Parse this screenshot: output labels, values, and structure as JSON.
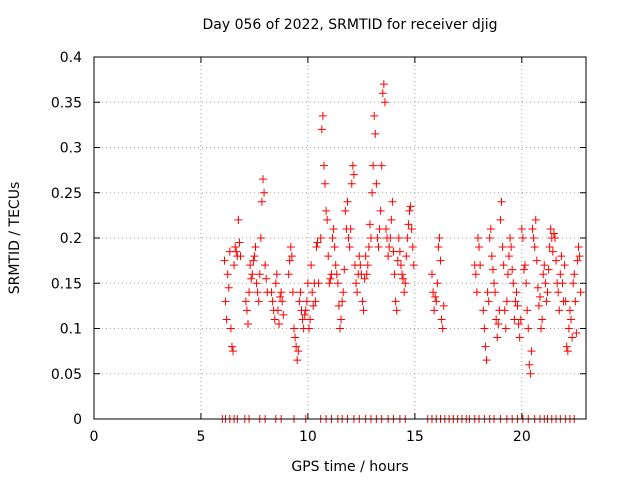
{
  "chart_data": {
    "type": "scatter",
    "title": "Day 056 of 2022, SRMTID for receiver djig",
    "xlabel": "GPS time / hours",
    "ylabel": "SRMTID / TECUs",
    "xlim": [
      0,
      23
    ],
    "ylim": [
      0,
      0.4
    ],
    "xticks": [
      0,
      5,
      10,
      15,
      20
    ],
    "yticks": [
      0,
      0.05,
      0.1,
      0.15,
      0.2,
      0.25,
      0.3,
      0.35,
      0.4
    ],
    "xtick_labels": [
      "0",
      "5",
      "10",
      "15",
      "20"
    ],
    "ytick_labels": [
      "0",
      "0.05",
      "0.1",
      "0.15",
      "0.2",
      "0.25",
      "0.3",
      "0.35",
      "0.4"
    ],
    "grid": true,
    "marker": "+",
    "series": [
      {
        "name": "SRMTID",
        "color": "#ff0000",
        "points": [
          [
            6.1,
            0.175
          ],
          [
            6.15,
            0.13
          ],
          [
            6.2,
            0.11
          ],
          [
            6.25,
            0.16
          ],
          [
            6.3,
            0.145
          ],
          [
            6.35,
            0.185
          ],
          [
            6.4,
            0.1
          ],
          [
            6.45,
            0.08
          ],
          [
            6.5,
            0.075
          ],
          [
            6.55,
            0.17
          ],
          [
            6.6,
            0.19
          ],
          [
            6.65,
            0.185
          ],
          [
            6.7,
            0.18
          ],
          [
            6.75,
            0.22
          ],
          [
            6.8,
            0.195
          ],
          [
            6.85,
            0.18
          ],
          [
            7.1,
            0.13
          ],
          [
            7.15,
            0.12
          ],
          [
            7.2,
            0.105
          ],
          [
            7.25,
            0.14
          ],
          [
            7.3,
            0.17
          ],
          [
            7.35,
            0.155
          ],
          [
            7.4,
            0.16
          ],
          [
            7.45,
            0.175
          ],
          [
            7.5,
            0.18
          ],
          [
            7.55,
            0.19
          ],
          [
            7.6,
            0.15
          ],
          [
            7.65,
            0.14
          ],
          [
            7.7,
            0.13
          ],
          [
            7.75,
            0.16
          ],
          [
            7.8,
            0.2
          ],
          [
            7.85,
            0.24
          ],
          [
            7.9,
            0.265
          ],
          [
            7.95,
            0.25
          ],
          [
            8.0,
            0.17
          ],
          [
            8.05,
            0.155
          ],
          [
            8.1,
            0.14
          ],
          [
            8.3,
            0.14
          ],
          [
            8.35,
            0.13
          ],
          [
            8.4,
            0.12
          ],
          [
            8.45,
            0.11
          ],
          [
            8.5,
            0.15
          ],
          [
            8.55,
            0.16
          ],
          [
            8.6,
            0.12
          ],
          [
            8.65,
            0.105
          ],
          [
            8.7,
            0.135
          ],
          [
            8.75,
            0.14
          ],
          [
            8.8,
            0.13
          ],
          [
            8.85,
            0.115
          ],
          [
            9.1,
            0.16
          ],
          [
            9.15,
            0.175
          ],
          [
            9.2,
            0.19
          ],
          [
            9.25,
            0.18
          ],
          [
            9.3,
            0.14
          ],
          [
            9.35,
            0.1
          ],
          [
            9.4,
            0.09
          ],
          [
            9.45,
            0.08
          ],
          [
            9.5,
            0.065
          ],
          [
            9.55,
            0.075
          ],
          [
            9.6,
            0.13
          ],
          [
            9.65,
            0.14
          ],
          [
            9.7,
            0.12
          ],
          [
            9.75,
            0.11
          ],
          [
            9.8,
            0.1
          ],
          [
            9.85,
            0.115
          ],
          [
            9.9,
            0.12
          ],
          [
            9.95,
            0.13
          ],
          [
            10.0,
            0.15
          ],
          [
            10.05,
            0.1
          ],
          [
            10.1,
            0.11
          ],
          [
            10.15,
            0.17
          ],
          [
            10.2,
            0.14
          ],
          [
            10.25,
            0.125
          ],
          [
            10.3,
            0.15
          ],
          [
            10.35,
            0.13
          ],
          [
            10.4,
            0.19
          ],
          [
            10.45,
            0.195
          ],
          [
            10.5,
            0.15
          ],
          [
            10.6,
            0.2
          ],
          [
            10.65,
            0.32
          ],
          [
            10.7,
            0.335
          ],
          [
            10.75,
            0.28
          ],
          [
            10.8,
            0.26
          ],
          [
            10.85,
            0.23
          ],
          [
            10.9,
            0.22
          ],
          [
            10.95,
            0.18
          ],
          [
            11.0,
            0.15
          ],
          [
            11.05,
            0.155
          ],
          [
            11.1,
            0.16
          ],
          [
            11.15,
            0.2
          ],
          [
            11.2,
            0.21
          ],
          [
            11.25,
            0.19
          ],
          [
            11.3,
            0.17
          ],
          [
            11.35,
            0.16
          ],
          [
            11.4,
            0.15
          ],
          [
            11.45,
            0.125
          ],
          [
            11.5,
            0.1
          ],
          [
            11.55,
            0.11
          ],
          [
            11.6,
            0.13
          ],
          [
            11.65,
            0.14
          ],
          [
            11.7,
            0.165
          ],
          [
            11.75,
            0.23
          ],
          [
            11.8,
            0.21
          ],
          [
            11.85,
            0.24
          ],
          [
            11.9,
            0.2
          ],
          [
            11.95,
            0.19
          ],
          [
            12.0,
            0.21
          ],
          [
            12.05,
            0.26
          ],
          [
            12.1,
            0.28
          ],
          [
            12.15,
            0.27
          ],
          [
            12.2,
            0.17
          ],
          [
            12.25,
            0.15
          ],
          [
            12.3,
            0.14
          ],
          [
            12.35,
            0.16
          ],
          [
            12.4,
            0.18
          ],
          [
            12.45,
            0.17
          ],
          [
            12.5,
            0.16
          ],
          [
            12.55,
            0.13
          ],
          [
            12.6,
            0.12
          ],
          [
            12.65,
            0.155
          ],
          [
            12.7,
            0.18
          ],
          [
            12.75,
            0.16
          ],
          [
            12.8,
            0.17
          ],
          [
            12.85,
            0.19
          ],
          [
            12.9,
            0.215
          ],
          [
            12.95,
            0.2
          ],
          [
            13.0,
            0.25
          ],
          [
            13.05,
            0.28
          ],
          [
            13.1,
            0.335
          ],
          [
            13.15,
            0.315
          ],
          [
            13.2,
            0.26
          ],
          [
            13.25,
            0.2
          ],
          [
            13.3,
            0.19
          ],
          [
            13.35,
            0.21
          ],
          [
            13.4,
            0.23
          ],
          [
            13.45,
            0.28
          ],
          [
            13.5,
            0.36
          ],
          [
            13.55,
            0.37
          ],
          [
            13.6,
            0.35
          ],
          [
            13.65,
            0.21
          ],
          [
            13.7,
            0.2
          ],
          [
            13.75,
            0.18
          ],
          [
            13.8,
            0.19
          ],
          [
            13.85,
            0.2
          ],
          [
            13.9,
            0.22
          ],
          [
            13.95,
            0.24
          ],
          [
            14.0,
            0.185
          ],
          [
            14.05,
            0.16
          ],
          [
            14.1,
            0.13
          ],
          [
            14.15,
            0.12
          ],
          [
            14.2,
            0.175
          ],
          [
            14.25,
            0.2
          ],
          [
            14.3,
            0.185
          ],
          [
            14.35,
            0.17
          ],
          [
            14.4,
            0.16
          ],
          [
            14.45,
            0.155
          ],
          [
            14.5,
            0.14
          ],
          [
            14.55,
            0.15
          ],
          [
            14.6,
            0.18
          ],
          [
            14.65,
            0.2
          ],
          [
            14.7,
            0.215
          ],
          [
            14.75,
            0.23
          ],
          [
            14.8,
            0.235
          ],
          [
            14.85,
            0.21
          ],
          [
            14.9,
            0.19
          ],
          [
            14.95,
            0.17
          ],
          [
            15.8,
            0.16
          ],
          [
            15.85,
            0.14
          ],
          [
            15.9,
            0.12
          ],
          [
            15.95,
            0.135
          ],
          [
            16.0,
            0.13
          ],
          [
            16.05,
            0.15
          ],
          [
            16.1,
            0.19
          ],
          [
            16.15,
            0.2
          ],
          [
            16.2,
            0.175
          ],
          [
            16.25,
            0.11
          ],
          [
            16.3,
            0.1
          ],
          [
            16.35,
            0.125
          ],
          [
            17.8,
            0.17
          ],
          [
            17.85,
            0.16
          ],
          [
            17.9,
            0.14
          ],
          [
            17.95,
            0.2
          ],
          [
            18.0,
            0.19
          ],
          [
            18.05,
            0.17
          ],
          [
            18.2,
            0.12
          ],
          [
            18.25,
            0.1
          ],
          [
            18.3,
            0.08
          ],
          [
            18.35,
            0.065
          ],
          [
            18.4,
            0.14
          ],
          [
            18.45,
            0.13
          ],
          [
            18.5,
            0.2
          ],
          [
            18.55,
            0.21
          ],
          [
            18.6,
            0.18
          ],
          [
            18.65,
            0.165
          ],
          [
            18.7,
            0.15
          ],
          [
            18.75,
            0.14
          ],
          [
            18.8,
            0.11
          ],
          [
            18.85,
            0.09
          ],
          [
            18.9,
            0.105
          ],
          [
            18.95,
            0.12
          ],
          [
            19.0,
            0.22
          ],
          [
            19.05,
            0.24
          ],
          [
            19.1,
            0.19
          ],
          [
            19.15,
            0.17
          ],
          [
            19.2,
            0.12
          ],
          [
            19.25,
            0.1
          ],
          [
            19.3,
            0.13
          ],
          [
            19.35,
            0.16
          ],
          [
            19.4,
            0.18
          ],
          [
            19.45,
            0.2
          ],
          [
            19.5,
            0.19
          ],
          [
            19.55,
            0.165
          ],
          [
            19.6,
            0.15
          ],
          [
            19.65,
            0.11
          ],
          [
            19.7,
            0.13
          ],
          [
            19.75,
            0.14
          ],
          [
            19.8,
            0.125
          ],
          [
            19.85,
            0.105
          ],
          [
            19.9,
            0.09
          ],
          [
            19.95,
            0.11
          ],
          [
            20.0,
            0.21
          ],
          [
            20.05,
            0.2
          ],
          [
            20.1,
            0.165
          ],
          [
            20.15,
            0.17
          ],
          [
            20.2,
            0.15
          ],
          [
            20.25,
            0.12
          ],
          [
            20.3,
            0.1
          ],
          [
            20.35,
            0.06
          ],
          [
            20.4,
            0.05
          ],
          [
            20.45,
            0.075
          ],
          [
            20.5,
            0.21
          ],
          [
            20.55,
            0.2
          ],
          [
            20.6,
            0.19
          ],
          [
            20.65,
            0.22
          ],
          [
            20.7,
            0.175
          ],
          [
            20.75,
            0.145
          ],
          [
            20.8,
            0.125
          ],
          [
            20.85,
            0.135
          ],
          [
            20.9,
            0.1
          ],
          [
            20.95,
            0.11
          ],
          [
            21.0,
            0.16
          ],
          [
            21.05,
            0.17
          ],
          [
            21.1,
            0.15
          ],
          [
            21.15,
            0.13
          ],
          [
            21.2,
            0.14
          ],
          [
            21.25,
            0.165
          ],
          [
            21.3,
            0.19
          ],
          [
            21.35,
            0.21
          ],
          [
            21.4,
            0.2
          ],
          [
            21.45,
            0.185
          ],
          [
            21.5,
            0.205
          ],
          [
            21.55,
            0.2
          ],
          [
            21.6,
            0.175
          ],
          [
            21.65,
            0.15
          ],
          [
            21.7,
            0.14
          ],
          [
            21.75,
            0.12
          ],
          [
            21.8,
            0.16
          ],
          [
            21.85,
            0.18
          ],
          [
            21.9,
            0.15
          ],
          [
            21.95,
            0.13
          ],
          [
            22.0,
            0.17
          ],
          [
            22.05,
            0.13
          ],
          [
            22.1,
            0.08
          ],
          [
            22.15,
            0.075
          ],
          [
            22.2,
            0.1
          ],
          [
            22.25,
            0.12
          ],
          [
            22.3,
            0.11
          ],
          [
            22.35,
            0.09
          ],
          [
            22.4,
            0.15
          ],
          [
            22.45,
            0.16
          ],
          [
            22.5,
            0.13
          ],
          [
            22.55,
            0.095
          ],
          [
            22.6,
            0.175
          ],
          [
            22.65,
            0.19
          ],
          [
            22.7,
            0.18
          ],
          [
            22.75,
            0.14
          ]
        ],
        "zero_points": [
          6.0,
          6.15,
          6.35,
          6.55,
          6.7,
          7.05,
          7.25,
          7.75,
          8.0,
          8.5,
          8.75,
          9.35,
          9.9,
          10.6,
          10.85,
          11.1,
          11.4,
          11.6,
          11.85,
          12.15,
          12.4,
          12.7,
          12.95,
          13.2,
          13.45,
          13.75,
          14.0,
          14.3,
          14.55,
          15.6,
          15.8,
          16.0,
          16.2,
          16.4,
          16.6,
          16.8,
          17.0,
          17.2,
          17.4,
          17.55,
          17.8,
          18.0,
          18.25,
          18.5,
          18.7,
          19.0,
          19.3,
          19.55,
          19.8,
          20.05,
          20.3,
          20.6,
          20.85,
          21.05,
          21.2,
          21.4,
          21.6,
          21.8,
          22.05,
          22.25,
          22.45
        ]
      }
    ]
  }
}
